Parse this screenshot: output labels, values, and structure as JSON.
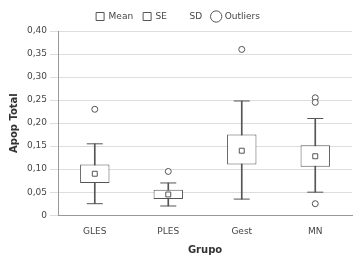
{
  "chart_data": {
    "type": "box",
    "x_label": "Grupo",
    "y_label": "Apop Total",
    "categories": [
      "GLES",
      "PLES",
      "Gest",
      "MN"
    ],
    "series": [
      {
        "name": "Mean",
        "values": [
          0.09,
          0.045,
          0.14,
          0.128
        ]
      },
      {
        "name": "SE",
        "low": [
          0.07,
          0.035,
          0.11,
          0.105
        ],
        "high": [
          0.11,
          0.055,
          0.175,
          0.152
        ]
      },
      {
        "name": "SD",
        "low": [
          0.025,
          0.02,
          0.035,
          0.05
        ],
        "high": [
          0.155,
          0.07,
          0.248,
          0.21
        ]
      },
      {
        "name": "Outliers",
        "values": [
          [
            0.23
          ],
          [
            0.095
          ],
          [
            0.36
          ],
          [
            0.255,
            0.245,
            0.025
          ]
        ]
      }
    ],
    "ylim": [
      0,
      0.4
    ],
    "yticks": [
      0,
      {
        "value": 0.05,
        "label": "0,05"
      },
      {
        "value": 0.1,
        "label": "0,10"
      },
      {
        "value": 0.15,
        "label": "0,15"
      },
      {
        "value": 0.2,
        "label": "0,20"
      },
      {
        "value": 0.25,
        "label": "0,25"
      },
      {
        "value": 0.3,
        "label": "0,30"
      },
      {
        "value": 0.35,
        "label": "0,35"
      },
      {
        "value": 0.4,
        "label": "0,40"
      }
    ],
    "grid": true,
    "legend": "top"
  }
}
